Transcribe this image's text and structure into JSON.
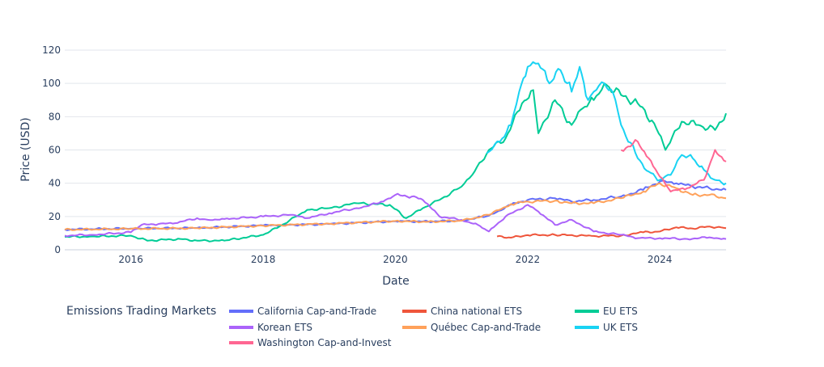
{
  "chart_data": {
    "type": "line",
    "xlabel": "Date",
    "ylabel": "Price (USD)",
    "xlim": [
      "2015-01-01",
      "2025-01-01"
    ],
    "ylim": [
      0,
      120
    ],
    "x_ticks": [
      "2016-01-01",
      "2018-01-01",
      "2020-01-01",
      "2022-01-01",
      "2024-01-01"
    ],
    "x_tick_labels": [
      "2016",
      "2018",
      "2020",
      "2022",
      "2024"
    ],
    "y_ticks": [
      0,
      20,
      40,
      60,
      80,
      100,
      120
    ],
    "grid": true,
    "legend": {
      "title": "Emissions Trading Markets",
      "position": "bottom"
    },
    "series": [
      {
        "name": "California Cap-and-Trade",
        "color": "#636efa",
        "points": [
          [
            "2015-01-01",
            12.2
          ],
          [
            "2016-01-01",
            12.8
          ],
          [
            "2017-01-01",
            13.1
          ],
          [
            "2018-01-01",
            14.6
          ],
          [
            "2019-01-01",
            15.5
          ],
          [
            "2020-01-01",
            17.2
          ],
          [
            "2020-07-01",
            17.0
          ],
          [
            "2021-01-01",
            17.5
          ],
          [
            "2021-06-01",
            20.5
          ],
          [
            "2021-10-01",
            27
          ],
          [
            "2022-01-01",
            30
          ],
          [
            "2022-06-01",
            31
          ],
          [
            "2022-09-01",
            29
          ],
          [
            "2023-01-01",
            30
          ],
          [
            "2023-06-01",
            32
          ],
          [
            "2023-10-01",
            36
          ],
          [
            "2024-01-01",
            41
          ],
          [
            "2024-04-01",
            40
          ],
          [
            "2024-07-01",
            38
          ],
          [
            "2024-10-01",
            37
          ],
          [
            "2025-01-01",
            36
          ]
        ]
      },
      {
        "name": "China national ETS",
        "color": "#ef553b",
        "points": [
          [
            "2021-07-16",
            8
          ],
          [
            "2021-10-01",
            7.3
          ],
          [
            "2022-01-01",
            8.8
          ],
          [
            "2022-06-01",
            9
          ],
          [
            "2023-01-01",
            8.3
          ],
          [
            "2023-06-01",
            8.5
          ],
          [
            "2023-10-01",
            10.5
          ],
          [
            "2024-01-01",
            11
          ],
          [
            "2024-04-01",
            13.5
          ],
          [
            "2024-07-01",
            12.8
          ],
          [
            "2024-10-01",
            14
          ],
          [
            "2025-01-01",
            13
          ]
        ]
      },
      {
        "name": "EU ETS",
        "color": "#00cc96",
        "points": [
          [
            "2015-01-01",
            7.8
          ],
          [
            "2015-06-01",
            8
          ],
          [
            "2016-01-01",
            8.5
          ],
          [
            "2016-04-01",
            5.5
          ],
          [
            "2016-10-01",
            6.5
          ],
          [
            "2017-01-01",
            5.5
          ],
          [
            "2017-06-01",
            5.5
          ],
          [
            "2018-01-01",
            9
          ],
          [
            "2018-04-01",
            14
          ],
          [
            "2018-09-01",
            24
          ],
          [
            "2019-01-01",
            25
          ],
          [
            "2019-06-01",
            28
          ],
          [
            "2019-12-01",
            27
          ],
          [
            "2020-03-01",
            19
          ],
          [
            "2020-06-01",
            25
          ],
          [
            "2020-09-01",
            30
          ],
          [
            "2021-01-01",
            38
          ],
          [
            "2021-03-01",
            45
          ],
          [
            "2021-06-01",
            60
          ],
          [
            "2021-09-01",
            67
          ],
          [
            "2021-12-01",
            88
          ],
          [
            "2022-02-01",
            96
          ],
          [
            "2022-03-01",
            70
          ],
          [
            "2022-06-01",
            90
          ],
          [
            "2022-09-01",
            75
          ],
          [
            "2022-11-01",
            85
          ],
          [
            "2023-01-01",
            90
          ],
          [
            "2023-03-01",
            100
          ],
          [
            "2023-06-01",
            93
          ],
          [
            "2023-09-01",
            88
          ],
          [
            "2023-12-01",
            76
          ],
          [
            "2024-02-01",
            60
          ],
          [
            "2024-05-01",
            77
          ],
          [
            "2024-08-01",
            75
          ],
          [
            "2024-11-01",
            72
          ],
          [
            "2025-01-01",
            82
          ]
        ]
      },
      {
        "name": "Korean ETS",
        "color": "#ab63fa",
        "points": [
          [
            "2015-01-01",
            8.5
          ],
          [
            "2015-06-01",
            9
          ],
          [
            "2016-01-01",
            10.5
          ],
          [
            "2016-03-01",
            15
          ],
          [
            "2016-06-01",
            15.5
          ],
          [
            "2016-09-01",
            16
          ],
          [
            "2017-01-01",
            19
          ],
          [
            "2017-03-01",
            18
          ],
          [
            "2017-06-01",
            18.5
          ],
          [
            "2018-01-01",
            20
          ],
          [
            "2018-06-01",
            21
          ],
          [
            "2018-09-01",
            19
          ],
          [
            "2019-01-01",
            22
          ],
          [
            "2019-06-01",
            25
          ],
          [
            "2019-10-01",
            28
          ],
          [
            "2020-01-01",
            33
          ],
          [
            "2020-04-01",
            32
          ],
          [
            "2020-06-01",
            30
          ],
          [
            "2020-09-01",
            20
          ],
          [
            "2021-01-01",
            18
          ],
          [
            "2021-04-01",
            15
          ],
          [
            "2021-06-01",
            11
          ],
          [
            "2021-09-01",
            20
          ],
          [
            "2022-01-01",
            27
          ],
          [
            "2022-03-01",
            23
          ],
          [
            "2022-06-01",
            15
          ],
          [
            "2022-09-01",
            18
          ],
          [
            "2023-01-01",
            11
          ],
          [
            "2023-06-01",
            9
          ],
          [
            "2023-09-01",
            7
          ],
          [
            "2024-01-01",
            7
          ],
          [
            "2024-06-01",
            6.5
          ],
          [
            "2024-10-01",
            7.5
          ],
          [
            "2025-01-01",
            6.5
          ]
        ]
      },
      {
        "name": "Québec Cap-and-Trade",
        "color": "#ffa15a",
        "points": [
          [
            "2015-01-01",
            12.1
          ],
          [
            "2016-01-01",
            12.6
          ],
          [
            "2017-01-01",
            13
          ],
          [
            "2018-01-01",
            14.5
          ],
          [
            "2019-01-01",
            15.7
          ],
          [
            "2020-01-01",
            17.3
          ],
          [
            "2020-07-01",
            16.8
          ],
          [
            "2021-01-01",
            17.5
          ],
          [
            "2021-06-01",
            21
          ],
          [
            "2021-10-01",
            27.5
          ],
          [
            "2022-01-01",
            29
          ],
          [
            "2022-06-01",
            29.5
          ],
          [
            "2022-09-01",
            28
          ],
          [
            "2023-01-01",
            28
          ],
          [
            "2023-06-01",
            31
          ],
          [
            "2023-10-01",
            35
          ],
          [
            "2024-01-01",
            40
          ],
          [
            "2024-04-01",
            37
          ],
          [
            "2024-07-01",
            33
          ],
          [
            "2024-10-01",
            33
          ],
          [
            "2025-01-01",
            31
          ]
        ]
      },
      {
        "name": "UK ETS",
        "color": "#19d3f3",
        "points": [
          [
            "2021-05-20",
            58
          ],
          [
            "2021-08-01",
            65
          ],
          [
            "2021-10-01",
            75
          ],
          [
            "2021-11-15",
            95
          ],
          [
            "2022-01-01",
            110
          ],
          [
            "2022-03-01",
            112
          ],
          [
            "2022-05-01",
            100
          ],
          [
            "2022-07-01",
            108
          ],
          [
            "2022-09-01",
            95
          ],
          [
            "2022-10-15",
            110
          ],
          [
            "2022-12-01",
            90
          ],
          [
            "2023-01-01",
            95
          ],
          [
            "2023-03-01",
            100
          ],
          [
            "2023-05-01",
            90
          ],
          [
            "2023-06-01",
            75
          ],
          [
            "2023-09-01",
            55
          ],
          [
            "2023-11-01",
            47
          ],
          [
            "2024-01-01",
            42
          ],
          [
            "2024-03-01",
            45
          ],
          [
            "2024-05-01",
            57
          ],
          [
            "2024-07-01",
            55
          ],
          [
            "2024-09-01",
            48
          ],
          [
            "2024-11-01",
            42
          ],
          [
            "2025-01-01",
            40
          ]
        ]
      },
      {
        "name": "Washington Cap-and-Invest",
        "color": "#ff6692",
        "points": [
          [
            "2023-06-01",
            60
          ],
          [
            "2023-09-01",
            65
          ],
          [
            "2023-11-01",
            55
          ],
          [
            "2024-01-01",
            44
          ],
          [
            "2024-03-01",
            35
          ],
          [
            "2024-06-01",
            37
          ],
          [
            "2024-09-01",
            42
          ],
          [
            "2024-11-01",
            60
          ],
          [
            "2025-01-01",
            53
          ]
        ]
      }
    ]
  }
}
